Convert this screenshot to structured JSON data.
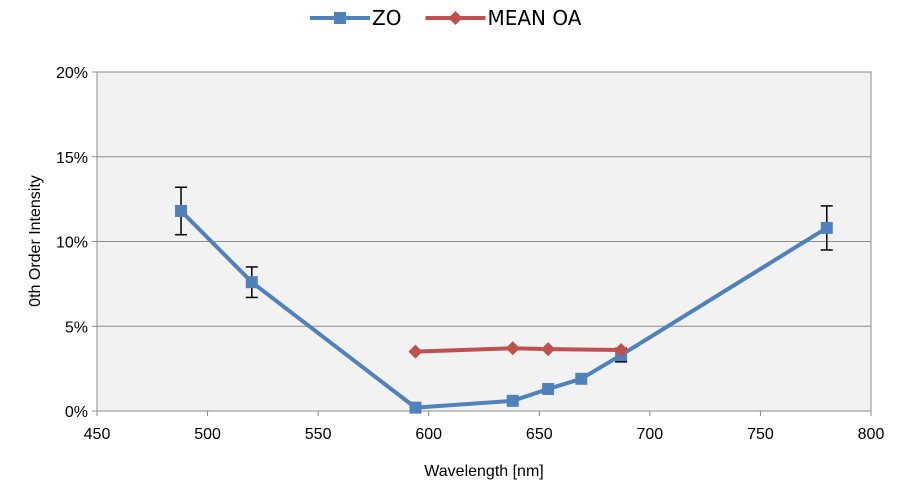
{
  "chart_data": {
    "type": "line",
    "xlabel": "Wavelength [nm]",
    "ylabel": "0th Order Intensity",
    "xlim": [
      450,
      800
    ],
    "ylim": [
      0,
      20
    ],
    "x_ticks": [
      "450",
      "500",
      "550",
      "600",
      "650",
      "700",
      "750",
      "800"
    ],
    "x_tick_values": [
      450,
      500,
      550,
      600,
      650,
      700,
      750,
      800
    ],
    "y_ticks": [
      "0%",
      "5%",
      "10%",
      "15%",
      "20%"
    ],
    "y_tick_values": [
      0,
      5,
      10,
      15,
      20
    ],
    "grid": "horizontal",
    "legend_position": "top-center",
    "series": [
      {
        "name": "ZO",
        "color": "#4F81BD",
        "marker": "square",
        "x": [
          488,
          520,
          594,
          638,
          654,
          669,
          687,
          780
        ],
        "y": [
          11.8,
          7.6,
          0.2,
          0.6,
          1.3,
          1.9,
          3.3,
          10.8
        ],
        "error": [
          1.4,
          0.9,
          null,
          null,
          null,
          null,
          0.4,
          1.3
        ]
      },
      {
        "name": "MEAN OA",
        "color": "#C0504D",
        "marker": "diamond",
        "x": [
          594,
          638,
          654,
          687
        ],
        "y": [
          3.5,
          3.7,
          3.65,
          3.6
        ]
      }
    ]
  }
}
